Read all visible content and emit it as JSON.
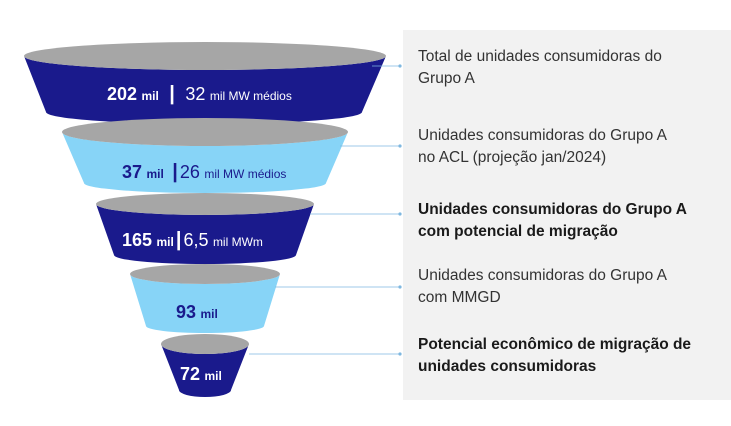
{
  "colors": {
    "dark_blue": "#1a1a8c",
    "light_blue": "#87d4f7",
    "rim_gray": "#a6a6a6",
    "connector": "#7fb8e0",
    "panel_bg": "#f2f2f2"
  },
  "stages": [
    {
      "fill": "dark",
      "value": "202",
      "value_unit": "mil",
      "separator": "|",
      "secondary_value": "32",
      "secondary_unit": "mil MW médios",
      "description_lines": [
        "Total de unidades consumidoras do",
        "Grupo A"
      ],
      "description_bold": false
    },
    {
      "fill": "light",
      "value": "37",
      "value_unit": "mil",
      "separator": "|",
      "secondary_value": "26",
      "secondary_unit": "mil MW médios",
      "description_lines": [
        "Unidades consumidoras do Grupo A",
        "no ACL (projeção jan/2024)"
      ],
      "description_bold": false
    },
    {
      "fill": "dark",
      "value": "165",
      "value_unit": "mil",
      "separator": "|",
      "secondary_value": "6,5",
      "secondary_unit": "mil MWm",
      "description_lines": [
        "Unidades consumidoras do Grupo A",
        "com potencial de migração"
      ],
      "description_bold": true
    },
    {
      "fill": "light",
      "value": "93",
      "value_unit": "mil",
      "description_lines": [
        "Unidades consumidoras do Grupo A",
        "com MMGD"
      ],
      "description_bold": false
    },
    {
      "fill": "dark",
      "value": "72",
      "value_unit": "mil",
      "description_lines": [
        "Potencial econômico de migração de",
        "unidades consumidoras"
      ],
      "description_bold": true
    }
  ]
}
